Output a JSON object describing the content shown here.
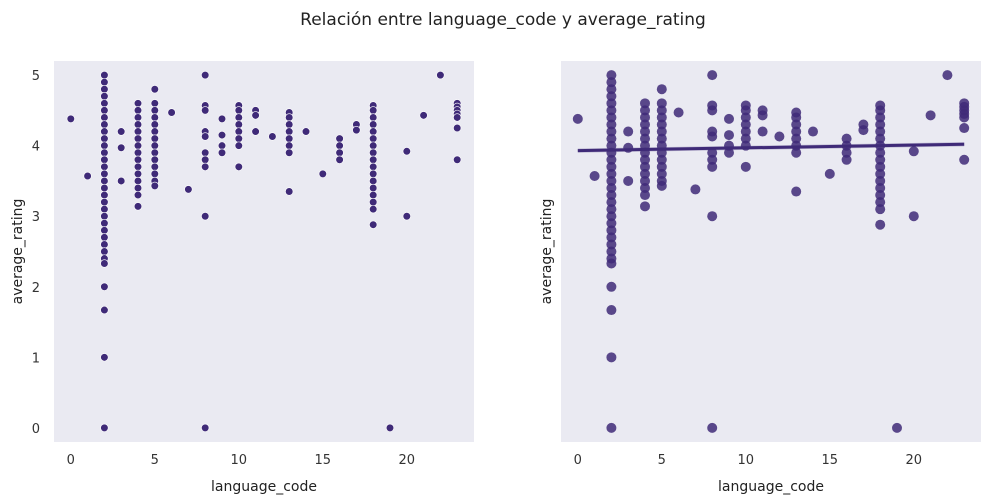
{
  "figure": {
    "suptitle": "Relación entre language_code y average_rating",
    "background": "#ffffff",
    "axes_face": "#eaeaf2",
    "marker_color": "#3f2a78",
    "reg_line_color": "#3f2a78"
  },
  "chart_data": [
    {
      "type": "scatter",
      "title": "",
      "xlabel": "language_code",
      "ylabel": "average_rating",
      "xlim": [
        -1,
        24
      ],
      "ylim": [
        -0.2,
        5.2
      ],
      "xticks": [
        0,
        5,
        10,
        15,
        20
      ],
      "yticks": [
        0,
        1,
        2,
        3,
        4,
        5
      ],
      "grid": false,
      "series": [
        {
          "points": [
            [
              0,
              4.38
            ],
            [
              1,
              3.57
            ],
            [
              2,
              5.0
            ],
            [
              2,
              4.9
            ],
            [
              2,
              4.8
            ],
            [
              2,
              4.7
            ],
            [
              2,
              4.6
            ],
            [
              2,
              4.5
            ],
            [
              2,
              4.4
            ],
            [
              2,
              4.3
            ],
            [
              2,
              4.2
            ],
            [
              2,
              4.1
            ],
            [
              2,
              4.0
            ],
            [
              2,
              3.9
            ],
            [
              2,
              3.8
            ],
            [
              2,
              3.7
            ],
            [
              2,
              3.6
            ],
            [
              2,
              3.5
            ],
            [
              2,
              3.4
            ],
            [
              2,
              3.3
            ],
            [
              2,
              3.2
            ],
            [
              2,
              3.1
            ],
            [
              2,
              3.0
            ],
            [
              2,
              2.9
            ],
            [
              2,
              2.8
            ],
            [
              2,
              2.7
            ],
            [
              2,
              2.6
            ],
            [
              2,
              2.5
            ],
            [
              2,
              2.4
            ],
            [
              2,
              2.33
            ],
            [
              2,
              2.0
            ],
            [
              2,
              1.67
            ],
            [
              2,
              1.0
            ],
            [
              2,
              0.0
            ],
            [
              3,
              4.2
            ],
            [
              3,
              3.97
            ],
            [
              3,
              3.5
            ],
            [
              4,
              4.6
            ],
            [
              4,
              4.5
            ],
            [
              4,
              4.4
            ],
            [
              4,
              4.3
            ],
            [
              4,
              4.2
            ],
            [
              4,
              4.1
            ],
            [
              4,
              4.0
            ],
            [
              4,
              3.9
            ],
            [
              4,
              3.8
            ],
            [
              4,
              3.7
            ],
            [
              4,
              3.6
            ],
            [
              4,
              3.5
            ],
            [
              4,
              3.4
            ],
            [
              4,
              3.3
            ],
            [
              4,
              3.14
            ],
            [
              5,
              4.8
            ],
            [
              5,
              4.6
            ],
            [
              5,
              4.5
            ],
            [
              5,
              4.4
            ],
            [
              5,
              4.3
            ],
            [
              5,
              4.2
            ],
            [
              5,
              4.1
            ],
            [
              5,
              4.0
            ],
            [
              5,
              3.9
            ],
            [
              5,
              3.8
            ],
            [
              5,
              3.7
            ],
            [
              5,
              3.6
            ],
            [
              5,
              3.5
            ],
            [
              5,
              3.43
            ],
            [
              6,
              4.47
            ],
            [
              7,
              3.38
            ],
            [
              8,
              5.0
            ],
            [
              8,
              4.57
            ],
            [
              8,
              4.5
            ],
            [
              8,
              4.2
            ],
            [
              8,
              4.13
            ],
            [
              8,
              3.9
            ],
            [
              8,
              3.8
            ],
            [
              8,
              3.7
            ],
            [
              8,
              3.0
            ],
            [
              8,
              0.0
            ],
            [
              9,
              4.38
            ],
            [
              9,
              4.15
            ],
            [
              9,
              4.0
            ],
            [
              9,
              3.9
            ],
            [
              10,
              4.57
            ],
            [
              10,
              4.5
            ],
            [
              10,
              4.4
            ],
            [
              10,
              4.3
            ],
            [
              10,
              4.2
            ],
            [
              10,
              4.1
            ],
            [
              10,
              4.0
            ],
            [
              10,
              3.7
            ],
            [
              11,
              4.5
            ],
            [
              11,
              4.43
            ],
            [
              11,
              4.2
            ],
            [
              12,
              4.13
            ],
            [
              13,
              4.47
            ],
            [
              13,
              4.4
            ],
            [
              13,
              4.3
            ],
            [
              13,
              4.2
            ],
            [
              13,
              4.1
            ],
            [
              13,
              4.0
            ],
            [
              13,
              3.9
            ],
            [
              13,
              3.35
            ],
            [
              14,
              4.2
            ],
            [
              15,
              3.6
            ],
            [
              16,
              4.1
            ],
            [
              16,
              4.0
            ],
            [
              16,
              3.9
            ],
            [
              16,
              3.8
            ],
            [
              17,
              4.3
            ],
            [
              17,
              4.22
            ],
            [
              18,
              4.57
            ],
            [
              18,
              4.5
            ],
            [
              18,
              4.4
            ],
            [
              18,
              4.3
            ],
            [
              18,
              4.2
            ],
            [
              18,
              4.1
            ],
            [
              18,
              4.0
            ],
            [
              18,
              3.9
            ],
            [
              18,
              3.8
            ],
            [
              18,
              3.7
            ],
            [
              18,
              3.6
            ],
            [
              18,
              3.5
            ],
            [
              18,
              3.4
            ],
            [
              18,
              3.3
            ],
            [
              18,
              3.2
            ],
            [
              18,
              3.1
            ],
            [
              18,
              2.88
            ],
            [
              19,
              0.0
            ],
            [
              20,
              3.92
            ],
            [
              20,
              3.0
            ],
            [
              21,
              4.43
            ],
            [
              22,
              5.0
            ],
            [
              23,
              4.6
            ],
            [
              23,
              4.55
            ],
            [
              23,
              4.5
            ],
            [
              23,
              4.45
            ],
            [
              23,
              4.4
            ],
            [
              23,
              4.25
            ],
            [
              23,
              3.8
            ]
          ]
        }
      ]
    },
    {
      "type": "scatter",
      "title": "",
      "xlabel": "language_code",
      "ylabel": "average_rating",
      "xlim": [
        -1,
        24
      ],
      "ylim": [
        -0.2,
        5.2
      ],
      "xticks": [
        0,
        5,
        10,
        15,
        20
      ],
      "yticks": [
        0,
        1,
        2,
        3,
        4,
        5
      ],
      "show_ytick_labels": false,
      "grid": false,
      "series": [
        {
          "points": "same as left panel"
        }
      ],
      "regression_line": {
        "x": [
          0,
          23
        ],
        "y": [
          3.93,
          4.02
        ]
      }
    }
  ]
}
